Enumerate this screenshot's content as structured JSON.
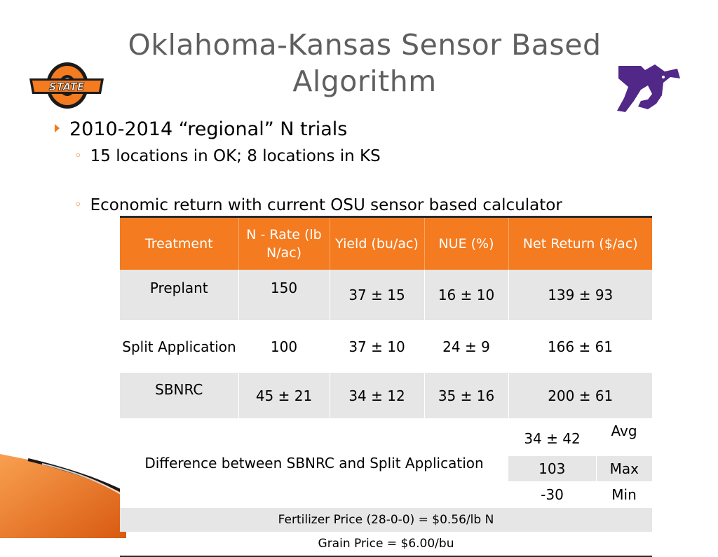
{
  "title": "Oklahoma-Kansas Sensor Based Algorithm",
  "logos": {
    "left": "STATE",
    "right": "K-State Wildcat"
  },
  "bullets": {
    "main": "2010-2014 “regional” N trials",
    "sub1": "15 locations in OK; 8 locations in KS",
    "sub2": "Economic return with current OSU sensor based calculator"
  },
  "table": {
    "headers": [
      "Treatment",
      "N - Rate (lb N/ac)",
      "Yield (bu/ac)",
      "NUE (%)",
      "Net Return ($/ac)"
    ],
    "rows": [
      [
        "Preplant",
        "150",
        "37 ± 15",
        "16 ± 10",
        "139 ± 93"
      ],
      [
        "Split Application",
        "100",
        "37 ± 10",
        "24 ± 9",
        "166 ± 61"
      ],
      [
        "SBNRC",
        "45 ± 21",
        "34 ± 12",
        "35 ± 16",
        "200 ± 61"
      ]
    ],
    "difference_label": "Difference between SBNRC and Split Application",
    "difference": [
      {
        "value": "34 ± 42",
        "label": "Avg"
      },
      {
        "value": "103",
        "label": "Max"
      },
      {
        "value": "-30",
        "label": "Min"
      }
    ],
    "fertilizer_price": "Fertilizer Price (28-0-0) = $0.56/lb N",
    "grain_price": "Grain Price = $6.00/bu"
  },
  "colors": {
    "header": "#f47b20",
    "title": "#5f5f5f",
    "bullet": "#f07a1a",
    "row_gray": "#e6e6e6",
    "ksu_purple": "#512888"
  }
}
